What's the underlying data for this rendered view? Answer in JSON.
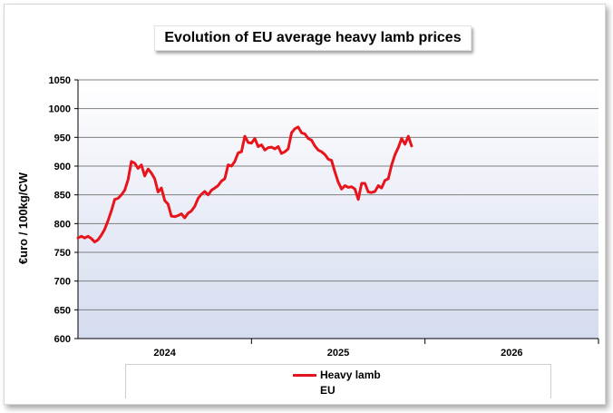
{
  "chart_data": {
    "type": "line",
    "title": "Evolution of EU average heavy lamb prices",
    "ylabel": "€uro / 100kg/CW",
    "xlabel": "",
    "ylim": [
      600,
      1050
    ],
    "yticks": [
      600,
      650,
      700,
      750,
      800,
      850,
      900,
      950,
      1000,
      1050
    ],
    "xlim": [
      0,
      156
    ],
    "xtick_labels": [
      {
        "label": "2024",
        "x": 26
      },
      {
        "label": "2025",
        "x": 78
      },
      {
        "label": "2026",
        "x": 130
      }
    ],
    "year_boundaries": [
      52,
      104
    ],
    "series": [
      {
        "name": "Heavy lamb",
        "legend_sub": "EU",
        "color": "#e8141c",
        "x": [
          0,
          1,
          2,
          3,
          4,
          5,
          6,
          7,
          8,
          9,
          10,
          11,
          12,
          13,
          14,
          15,
          16,
          17,
          18,
          19,
          20,
          21,
          22,
          23,
          24,
          25,
          26,
          27,
          28,
          29,
          30,
          31,
          32,
          33,
          34,
          35,
          36,
          37,
          38,
          39,
          40,
          41,
          42,
          43,
          44,
          45,
          46,
          47,
          48,
          49,
          50,
          51,
          52,
          53,
          54,
          55,
          56,
          57,
          58,
          59,
          60,
          61,
          62,
          63,
          64,
          65,
          66,
          67,
          68,
          69,
          70,
          71,
          72,
          73,
          74,
          75,
          76,
          77,
          78,
          79,
          80,
          81,
          82,
          83,
          84,
          85,
          86,
          87,
          88,
          89,
          90,
          91,
          92,
          93,
          94,
          95,
          96,
          97,
          98,
          99,
          100
        ],
        "values": [
          775,
          778,
          775,
          778,
          774,
          768,
          772,
          780,
          790,
          805,
          822,
          842,
          844,
          850,
          858,
          876,
          908,
          905,
          896,
          902,
          883,
          895,
          888,
          878,
          855,
          862,
          840,
          834,
          813,
          812,
          814,
          817,
          810,
          818,
          822,
          830,
          844,
          851,
          856,
          850,
          858,
          862,
          866,
          874,
          878,
          902,
          900,
          908,
          923,
          925,
          952,
          941,
          940,
          948,
          934,
          937,
          928,
          932,
          933,
          930,
          934,
          922,
          925,
          930,
          958,
          965,
          968,
          958,
          956,
          948,
          945,
          935,
          928,
          925,
          920,
          912,
          910,
          890,
          872,
          860,
          866,
          863,
          864,
          860,
          842,
          870,
          870,
          855,
          854,
          856,
          866,
          862,
          875,
          878,
          902,
          920,
          932,
          948,
          938,
          952,
          935
        ]
      }
    ]
  }
}
